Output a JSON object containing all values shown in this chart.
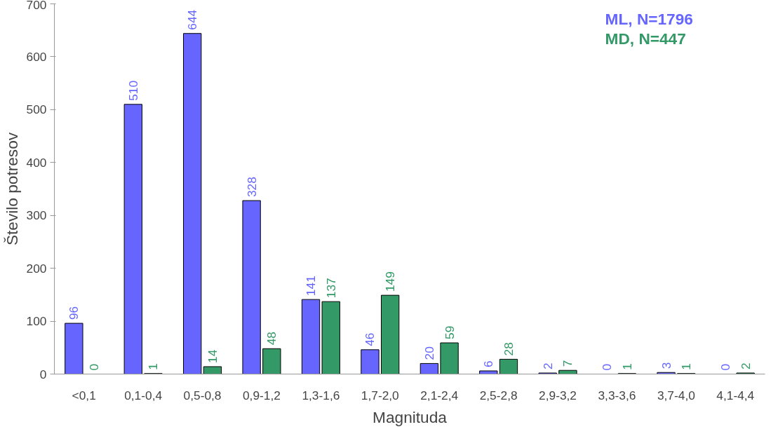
{
  "chart_data": {
    "type": "bar",
    "xlabel": "Magnituda",
    "ylabel": "Število potresov",
    "categories": [
      "<0,1",
      "0,1-0,4",
      "0,5-0,8",
      "0,9-1,2",
      "1,3-1,6",
      "1,7-2,0",
      "2,1-2,4",
      "2,5-2,8",
      "2,9-3,2",
      "3,3-3,6",
      "3,7-4,0",
      "4,1-4,4"
    ],
    "series": [
      {
        "name": "ML, N=1796",
        "color": "#6666ff",
        "values": [
          96,
          510,
          644,
          328,
          141,
          46,
          20,
          6,
          2,
          0,
          3,
          0
        ]
      },
      {
        "name": "MD, N=447",
        "color": "#339966",
        "values": [
          0,
          1,
          14,
          48,
          137,
          149,
          59,
          28,
          7,
          1,
          1,
          2
        ]
      }
    ],
    "ylim": [
      0,
      700
    ],
    "yticks": [
      0,
      100,
      200,
      300,
      400,
      500,
      600,
      700
    ],
    "grid": false,
    "legend": "top right",
    "data_labels": true
  }
}
